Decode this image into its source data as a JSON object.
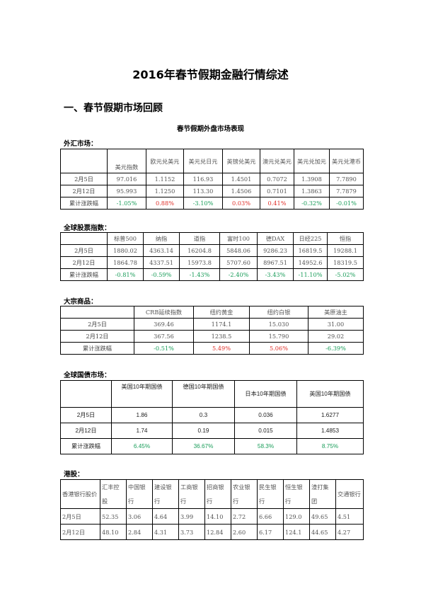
{
  "title": "2016年春节假期金融行情综述",
  "section1": "一、春节假期市场回顾",
  "subtitle": "春节假期外盘市场表现",
  "fx": {
    "heading": "外汇市场：",
    "headers": [
      "美元指数",
      "欧元兑美元",
      "美元兑日元",
      "英镑兑美元",
      "澳元兑美元",
      "美元兑加元",
      "美元兑港币"
    ],
    "rows": [
      {
        "label": "2月5日",
        "values": [
          "97.016",
          "1.1152",
          "116.93",
          "1.4501",
          "0.7072",
          "1.3908",
          "7.7890"
        ]
      },
      {
        "label": "2月12日",
        "values": [
          "95.993",
          "1.1250",
          "113.30",
          "1.4506",
          "0.7101",
          "1.3863",
          "7.7879"
        ]
      }
    ],
    "change_label": "累计涨跌幅",
    "changes": [
      "-1.05%",
      "0.88%",
      "-3.10%",
      "0.03%",
      "0.41%",
      "-0.32%",
      "-0.01%"
    ]
  },
  "stocks": {
    "heading": "全球股票指数：",
    "headers": [
      "标普500",
      "纳指",
      "道指",
      "富时100",
      "德DAX",
      "日经225",
      "恒指"
    ],
    "rows": [
      {
        "label": "2月5日",
        "values": [
          "1880.02",
          "4363.14",
          "16204.8",
          "5848.06",
          "9286.23",
          "16819.5",
          "19288.1"
        ]
      },
      {
        "label": "2月12日",
        "values": [
          "1864.78",
          "4337.51",
          "15973.8",
          "5707.60",
          "8967.51",
          "14952.6",
          "18319.5"
        ]
      }
    ],
    "change_label": "累计涨跌幅",
    "changes": [
      "-0.81%",
      "-0.59%",
      "-1.43%",
      "-2.40%",
      "-3.43%",
      "-11.10%",
      "-5.02%"
    ]
  },
  "commodities": {
    "heading": "大宗商品：",
    "headers": [
      "CRB延续指数",
      "纽约黄金",
      "纽约白银",
      "美原油主"
    ],
    "rows": [
      {
        "label": "2月5日",
        "values": [
          "369.46",
          "1174.1",
          "15.030",
          "31.00"
        ]
      },
      {
        "label": "2月12日",
        "values": [
          "367.56",
          "1238.5",
          "15.790",
          "29.02"
        ]
      }
    ],
    "change_label": "累计涨跌幅",
    "changes": [
      "-0.51%",
      "5.49%",
      "5.06%",
      "-6.39%"
    ]
  },
  "bonds": {
    "heading": "全球国债市场：",
    "headers": [
      "美国10年期国债",
      "德国10年期国债",
      "日本10年期国债",
      "英国10年期国债"
    ],
    "rows": [
      {
        "label": "2月5日",
        "values": [
          "1.86",
          "0.3",
          "0.036",
          "1.6277"
        ]
      },
      {
        "label": "2月12日",
        "values": [
          "1.74",
          "0.19",
          "0.015",
          "1.4853"
        ]
      }
    ],
    "change_label": "累计涨跌幅",
    "changes": [
      "6.45%",
      "36.67%",
      "58.3%",
      "8.75%"
    ]
  },
  "hk": {
    "heading": "港股：",
    "corner": "香港银行股价",
    "headers": [
      "汇丰控股",
      "中国银行",
      "建设银行",
      "工商银行",
      "招商银行",
      "农业银行",
      "民生银行",
      "恒生银行",
      "渣打集团",
      "交通银行"
    ],
    "rows": [
      {
        "label": "2月5日",
        "values": [
          "52.35",
          "3.06",
          "4.64",
          "3.99",
          "14.10",
          "2.72",
          "6.66",
          "129.0",
          "49.65",
          "4.51"
        ]
      },
      {
        "label": "2月12日",
        "values": [
          "48.10",
          "2.84",
          "4.31",
          "3.73",
          "12.84",
          "2.60",
          "6.17",
          "124.1",
          "44.65",
          "4.27"
        ]
      }
    ]
  },
  "colors": {
    "negative": "#1a9d5a",
    "positive": "#e0322c"
  }
}
